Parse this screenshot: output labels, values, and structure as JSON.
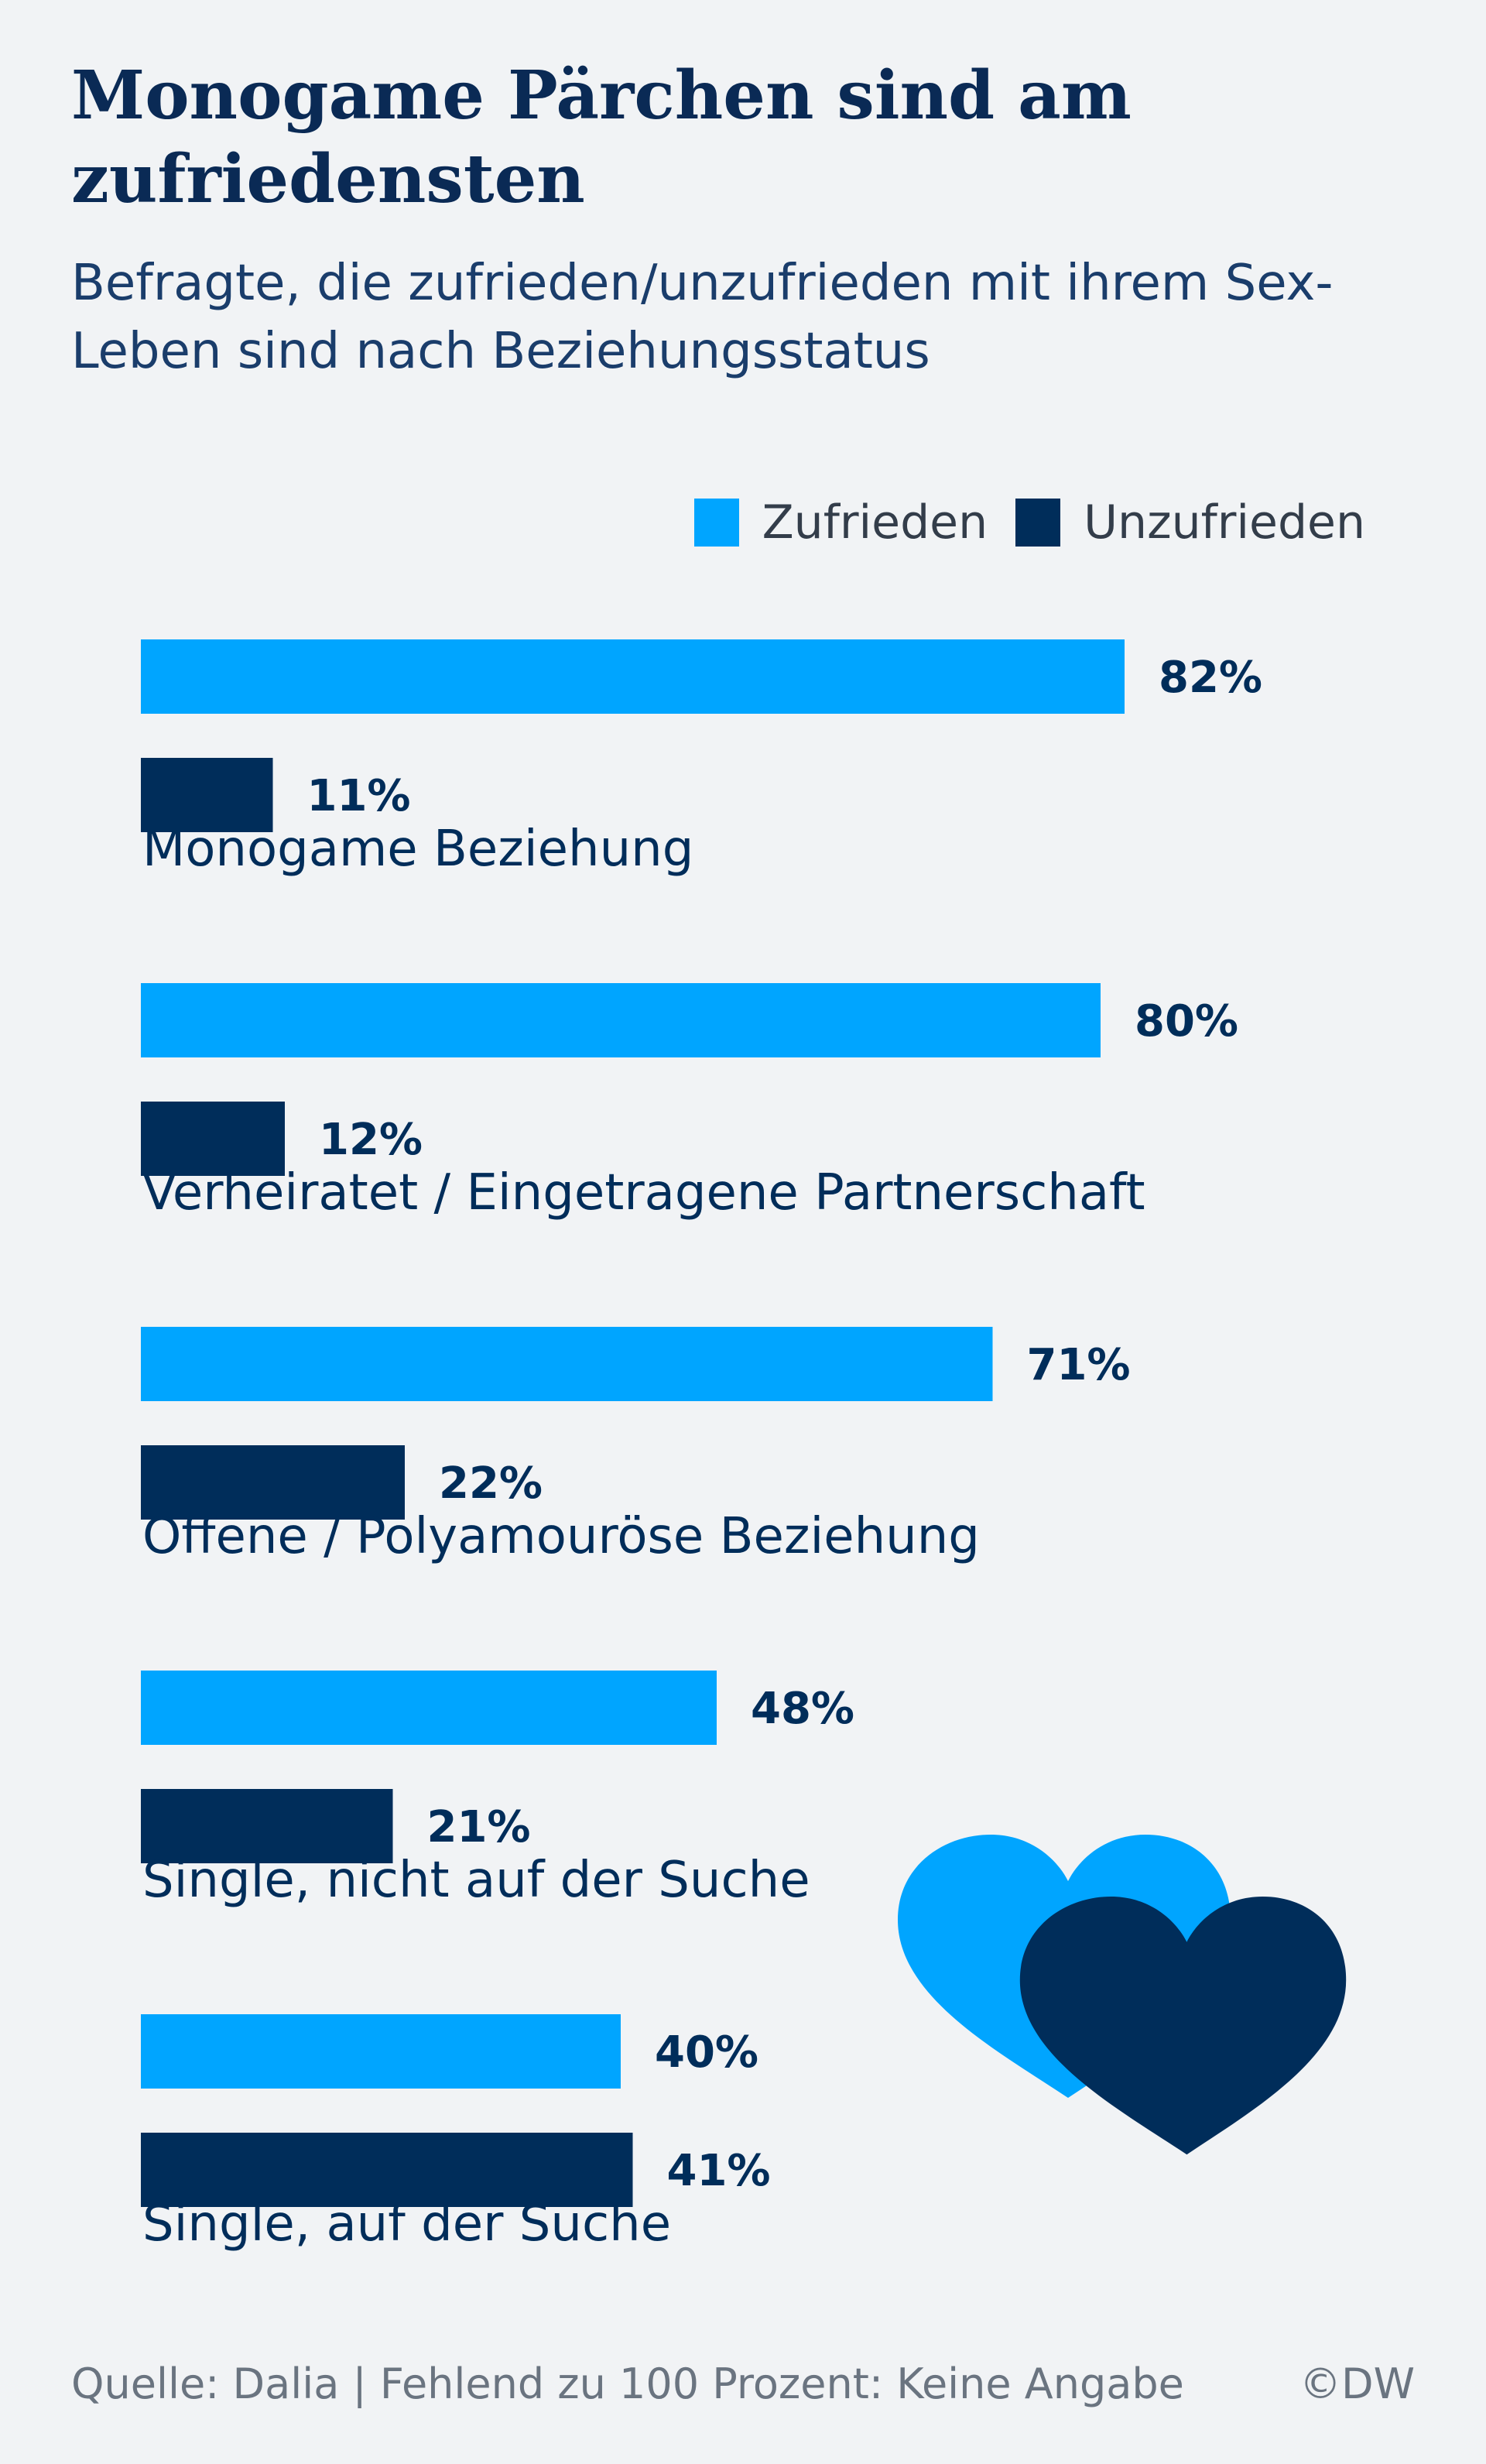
{
  "title": "Monogame Pärchen sind am zufriedensten",
  "subtitle": "Befragte, die zufrieden/unzufrieden mit ihrem Sex-Leben sind nach Beziehungsstatus",
  "legend": [
    {
      "label": "Zufrieden",
      "color": "#00a5ff"
    },
    {
      "label": "Unzufrieden",
      "color": "#002d5a"
    }
  ],
  "chart_data": {
    "type": "bar",
    "orientation": "horizontal",
    "title": "Monogame Pärchen sind am zufriedensten",
    "subtitle": "Befragte, die zufrieden/unzufrieden mit ihrem Sex-Leben sind nach Beziehungsstatus",
    "categories": [
      "Monogame Beziehung",
      "Verheiratet / Eingetragene Partnerschaft",
      "Offene / Polyamouröse Beziehung",
      "Single, nicht auf der Suche",
      "Single, auf der Suche"
    ],
    "series": [
      {
        "name": "Zufrieden",
        "color": "#00a5ff",
        "values": [
          82,
          80,
          71,
          48,
          40
        ]
      },
      {
        "name": "Unzufrieden",
        "color": "#002d5a",
        "values": [
          11,
          12,
          22,
          21,
          41
        ]
      }
    ],
    "value_suffix": "%",
    "xlim": [
      0,
      100
    ],
    "grid": false,
    "legend_position": "top-right"
  },
  "icons": [
    "heart-icon-light",
    "heart-icon-dark"
  ],
  "footer": {
    "source": "Quelle: Dalia | Fehlend zu 100 Prozent: Keine Angabe",
    "credit": "©DW"
  }
}
